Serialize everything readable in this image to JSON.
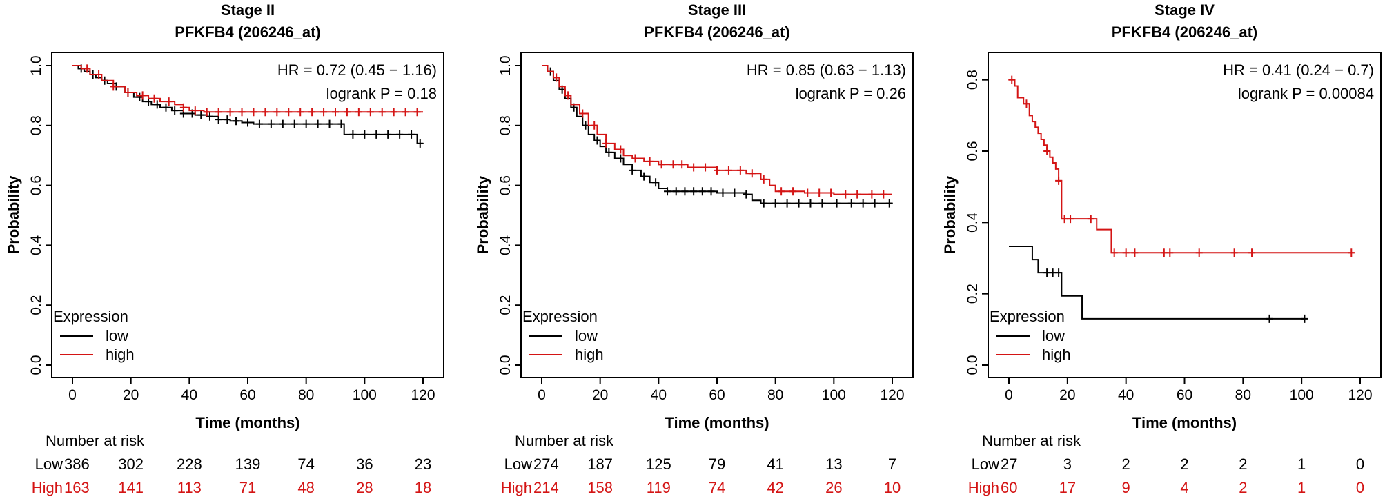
{
  "colors": {
    "low": "#000000",
    "high": "#d41414"
  },
  "chart_data": [
    {
      "type": "line",
      "title": "Stage II",
      "subtitle": "PFKFB4 (206246_at)",
      "xlabel": "Time (months)",
      "ylabel": "Probability",
      "xlim": [
        0,
        120
      ],
      "ylim": [
        0,
        1
      ],
      "xticks": [
        "0",
        "20",
        "40",
        "60",
        "80",
        "100",
        "120"
      ],
      "yticks": [
        "0.0",
        "0.2",
        "0.4",
        "0.6",
        "0.8",
        "1.0"
      ],
      "hr": "HR = 0.72 (0.45 − 1.16)",
      "logrank": "logrank P = 0.18",
      "legend_title": "Expression",
      "legend_position": "bottom-left",
      "series": [
        {
          "name": "low",
          "color": "#000000",
          "x": [
            0,
            2,
            4,
            6,
            8,
            10,
            12,
            15,
            18,
            21,
            24,
            27,
            30,
            34,
            38,
            42,
            46,
            50,
            54,
            58,
            62,
            70,
            80,
            90,
            93,
            100,
            110,
            118,
            120
          ],
          "y": [
            1.0,
            0.99,
            0.98,
            0.97,
            0.96,
            0.95,
            0.94,
            0.93,
            0.91,
            0.895,
            0.88,
            0.87,
            0.86,
            0.85,
            0.84,
            0.835,
            0.83,
            0.82,
            0.815,
            0.81,
            0.805,
            0.805,
            0.805,
            0.805,
            0.77,
            0.77,
            0.77,
            0.74,
            0.74
          ],
          "censor": [
            3,
            7,
            11,
            15,
            19,
            23,
            26,
            29,
            32,
            35,
            38,
            41,
            44,
            47,
            50,
            53,
            56,
            60,
            64,
            68,
            72,
            76,
            80,
            84,
            88,
            92,
            96,
            100,
            104,
            108,
            112,
            116,
            119
          ]
        },
        {
          "name": "high",
          "color": "#d41414",
          "x": [
            0,
            3,
            6,
            10,
            14,
            18,
            22,
            26,
            30,
            35,
            38,
            40,
            45,
            60,
            80,
            100,
            120
          ],
          "y": [
            1.0,
            0.99,
            0.97,
            0.95,
            0.93,
            0.91,
            0.9,
            0.89,
            0.88,
            0.87,
            0.86,
            0.85,
            0.845,
            0.845,
            0.845,
            0.845,
            0.845
          ],
          "censor": [
            5,
            9,
            14,
            19,
            24,
            28,
            33,
            38,
            42,
            46,
            50,
            54,
            58,
            62,
            66,
            70,
            74,
            78,
            82,
            86,
            90,
            94,
            98,
            102,
            106,
            110,
            114,
            118
          ]
        }
      ],
      "risk_table": {
        "label": "Number at risk",
        "rows": [
          {
            "name": "Low",
            "values": [
              "386",
              "302",
              "228",
              "139",
              "74",
              "36",
              "23"
            ]
          },
          {
            "name": "High",
            "values": [
              "163",
              "141",
              "113",
              "71",
              "48",
              "28",
              "18"
            ]
          }
        ]
      }
    },
    {
      "type": "line",
      "title": "Stage III",
      "subtitle": "PFKFB4 (206246_at)",
      "xlabel": "Time (months)",
      "ylabel": "Probability",
      "xlim": [
        0,
        120
      ],
      "ylim": [
        0,
        1
      ],
      "xticks": [
        "0",
        "20",
        "40",
        "60",
        "80",
        "100",
        "120"
      ],
      "yticks": [
        "0.0",
        "0.2",
        "0.4",
        "0.6",
        "0.8",
        "1.0"
      ],
      "hr": "HR = 0.85 (0.63 − 1.13)",
      "logrank": "logrank P = 0.26",
      "legend_title": "Expression",
      "legend_position": "bottom-left",
      "series": [
        {
          "name": "low",
          "color": "#000000",
          "x": [
            0,
            2,
            4,
            6,
            8,
            10,
            12,
            14,
            16,
            18,
            20,
            22,
            25,
            28,
            31,
            34,
            37,
            40,
            43,
            50,
            60,
            70,
            72,
            75,
            80,
            100,
            120
          ],
          "y": [
            1.0,
            0.98,
            0.95,
            0.92,
            0.89,
            0.86,
            0.83,
            0.8,
            0.77,
            0.75,
            0.73,
            0.71,
            0.69,
            0.67,
            0.65,
            0.63,
            0.61,
            0.59,
            0.58,
            0.58,
            0.575,
            0.57,
            0.55,
            0.54,
            0.54,
            0.54,
            0.54
          ],
          "censor": [
            3,
            7,
            11,
            15,
            19,
            23,
            27,
            31,
            35,
            39,
            43,
            46,
            49,
            52,
            55,
            58,
            62,
            66,
            70,
            76,
            80,
            84,
            88,
            92,
            96,
            101,
            106,
            110,
            114,
            119
          ]
        },
        {
          "name": "high",
          "color": "#d41414",
          "x": [
            0,
            2,
            4,
            6,
            8,
            10,
            13,
            16,
            19,
            22,
            25,
            28,
            31,
            35,
            40,
            50,
            60,
            70,
            75,
            78,
            80,
            90,
            100,
            120
          ],
          "y": [
            1.0,
            0.98,
            0.96,
            0.93,
            0.9,
            0.87,
            0.84,
            0.8,
            0.77,
            0.74,
            0.72,
            0.7,
            0.69,
            0.68,
            0.67,
            0.66,
            0.65,
            0.64,
            0.62,
            0.6,
            0.58,
            0.575,
            0.57,
            0.57
          ],
          "censor": [
            5,
            9,
            14,
            18,
            22,
            27,
            32,
            37,
            41,
            45,
            48,
            52,
            56,
            60,
            64,
            68,
            72,
            76,
            82,
            86,
            91,
            95,
            99,
            104,
            108,
            113,
            117
          ]
        }
      ],
      "risk_table": {
        "label": "Number at risk",
        "rows": [
          {
            "name": "Low",
            "values": [
              "274",
              "187",
              "125",
              "79",
              "41",
              "13",
              "7"
            ]
          },
          {
            "name": "High",
            "values": [
              "214",
              "158",
              "119",
              "74",
              "42",
              "26",
              "10"
            ]
          }
        ]
      }
    },
    {
      "type": "line",
      "title": "Stage IV",
      "subtitle": "PFKFB4 (206246_at)",
      "xlabel": "Time (months)",
      "ylabel": "Probability",
      "xlim": [
        0,
        120
      ],
      "ylim": [
        0,
        0.84
      ],
      "xticks": [
        "0",
        "20",
        "40",
        "60",
        "80",
        "100",
        "120"
      ],
      "yticks": [
        "0.0",
        "0.2",
        "0.4",
        "0.6",
        "0.8"
      ],
      "hr": "HR = 0.41 (0.24 − 0.7)",
      "logrank": "logrank P = 0.00084",
      "legend_title": "Expression",
      "legend_position": "bottom-left",
      "series": [
        {
          "name": "low",
          "color": "#000000",
          "x": [
            0,
            8,
            10,
            14,
            18,
            25,
            101
          ],
          "y": [
            0.333,
            0.296,
            0.259,
            0.259,
            0.194,
            0.13,
            0.13
          ],
          "censor": [
            13,
            15,
            17,
            89,
            101
          ]
        },
        {
          "name": "high",
          "color": "#d41414",
          "x": [
            0,
            2,
            3,
            5,
            7,
            8,
            9,
            10,
            11,
            12,
            13,
            14,
            15,
            16,
            17,
            18,
            30,
            35,
            118
          ],
          "y": [
            0.8,
            0.783,
            0.75,
            0.733,
            0.7,
            0.683,
            0.667,
            0.65,
            0.633,
            0.617,
            0.6,
            0.583,
            0.567,
            0.55,
            0.517,
            0.41,
            0.38,
            0.315,
            0.315
          ],
          "censor": [
            1,
            6,
            13,
            17,
            19,
            21,
            28,
            36,
            40,
            43,
            53,
            55,
            65,
            77,
            83,
            117
          ]
        }
      ],
      "risk_table": {
        "label": "Number at risk",
        "rows": [
          {
            "name": "Low",
            "values": [
              "27",
              "3",
              "2",
              "2",
              "2",
              "1",
              "0"
            ]
          },
          {
            "name": "High",
            "values": [
              "60",
              "17",
              "9",
              "4",
              "2",
              "1",
              "0"
            ]
          }
        ]
      }
    }
  ]
}
